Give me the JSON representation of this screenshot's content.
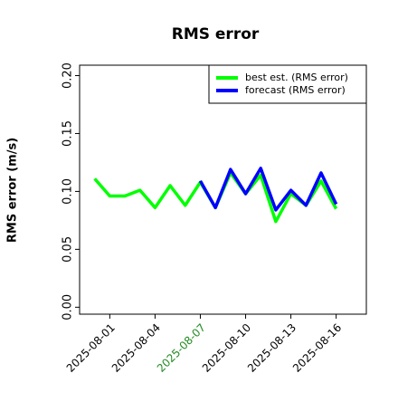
{
  "chart_data": {
    "type": "line",
    "title": "RMS error",
    "ylabel": "RMS error (m/s)",
    "x": [
      "2025-07-31",
      "2025-08-01",
      "2025-08-02",
      "2025-08-03",
      "2025-08-04",
      "2025-08-05",
      "2025-08-06",
      "2025-08-07",
      "2025-08-08",
      "2025-08-09",
      "2025-08-10",
      "2025-08-11",
      "2025-08-12",
      "2025-08-13",
      "2025-08-14",
      "2025-08-15",
      "2025-08-16"
    ],
    "series": [
      {
        "name": "best est. (RMS error)",
        "color": "#00ff00",
        "values": [
          0.111,
          0.096,
          0.096,
          0.101,
          0.086,
          0.105,
          0.088,
          0.108,
          0.086,
          0.116,
          0.098,
          0.114,
          0.074,
          0.098,
          0.088,
          0.109,
          0.085
        ]
      },
      {
        "name": "forecast (RMS error)",
        "color": "#0000ff",
        "values": [
          null,
          null,
          null,
          null,
          null,
          null,
          null,
          0.109,
          0.086,
          0.119,
          0.098,
          0.12,
          0.084,
          0.101,
          0.088,
          0.116,
          0.089
        ]
      }
    ],
    "xlim": [
      "2025-07-30",
      "2025-08-18"
    ],
    "xticks": [
      "2025-08-01",
      "2025-08-04",
      "2025-08-07",
      "2025-08-10",
      "2025-08-13",
      "2025-08-16"
    ],
    "xtick_label_colors": [
      "#000000",
      "#000000",
      "#228b22",
      "#000000",
      "#000000",
      "#000000"
    ],
    "ylim": [
      -0.006,
      0.209
    ],
    "yticks": [
      {
        "value": 0,
        "label": "0.00"
      },
      {
        "value": 0.05,
        "label": "0.05"
      },
      {
        "value": 0.1,
        "label": "0.10"
      },
      {
        "value": 0.15,
        "label": "0.15"
      },
      {
        "value": 0.2,
        "label": "0.20"
      }
    ],
    "legend": "upper right",
    "grid": false
  }
}
